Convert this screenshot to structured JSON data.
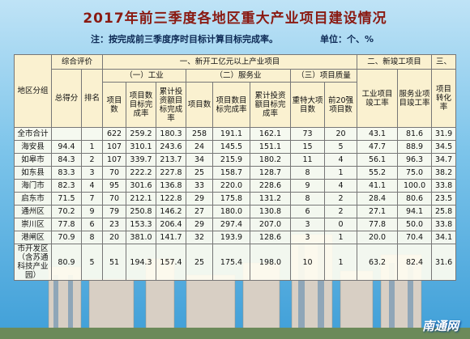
{
  "title": "2017年前三季度各地区重大产业项目建设情况",
  "note": "注：按完成前三季度序时目标计算目标完成率。",
  "unit": "单位：个、%",
  "table": {
    "header": {
      "region": "地区分组",
      "evaluation": "综合评价",
      "group1": "一、新开工亿元以上产业项目",
      "group2": "二、新竣工项目",
      "group3": "三、",
      "industry": "（一）工业",
      "service": "（二）服务业",
      "quality": "（三）项目质量",
      "columns": [
        "总得分",
        "排名",
        "项目数",
        "项目数目标完成率",
        "累计投资额目标完成率",
        "项目数",
        "项目数目标完成率",
        "累计投资额目标完成率",
        "重特大项目数",
        "前20强项目数",
        "工业项目竣工率",
        "服务业项目竣工率",
        "项目转化率"
      ]
    },
    "rows": [
      {
        "region": "全市合计",
        "values": [
          "622",
          "259.2",
          "180.3",
          "258",
          "191.1",
          "162.1",
          "73",
          "20",
          "43.1",
          "81.6",
          "31.9"
        ]
      },
      {
        "region": "海安县",
        "score": "94.4",
        "rank": "1",
        "values": [
          "107",
          "310.1",
          "243.6",
          "24",
          "145.5",
          "151.1",
          "15",
          "5",
          "47.7",
          "88.9",
          "34.5"
        ]
      },
      {
        "region": "如皋市",
        "score": "84.3",
        "rank": "2",
        "values": [
          "107",
          "339.7",
          "213.7",
          "34",
          "215.9",
          "180.2",
          "11",
          "4",
          "56.1",
          "96.3",
          "34.7"
        ]
      },
      {
        "region": "如东县",
        "score": "83.3",
        "rank": "3",
        "values": [
          "70",
          "222.2",
          "227.8",
          "25",
          "158.7",
          "128.7",
          "8",
          "1",
          "55.2",
          "75.0",
          "38.2"
        ]
      },
      {
        "region": "海门市",
        "score": "82.3",
        "rank": "4",
        "values": [
          "95",
          "301.6",
          "136.8",
          "33",
          "220.0",
          "228.6",
          "9",
          "4",
          "41.1",
          "100.0",
          "33.8"
        ]
      },
      {
        "region": "启东市",
        "score": "71.5",
        "rank": "7",
        "values": [
          "70",
          "212.1",
          "122.8",
          "29",
          "175.8",
          "131.2",
          "8",
          "2",
          "28.4",
          "80.6",
          "23.5"
        ]
      },
      {
        "region": "通州区",
        "score": "70.2",
        "rank": "9",
        "values": [
          "79",
          "250.8",
          "146.2",
          "27",
          "180.0",
          "130.8",
          "6",
          "2",
          "27.1",
          "94.1",
          "25.8"
        ]
      },
      {
        "region": "崇川区",
        "score": "77.8",
        "rank": "6",
        "values": [
          "23",
          "153.3",
          "206.4",
          "29",
          "297.4",
          "207.0",
          "3",
          "0",
          "77.8",
          "50.0",
          "33.8"
        ]
      },
      {
        "region": "港闸区",
        "score": "70.9",
        "rank": "8",
        "values": [
          "20",
          "381.0",
          "141.7",
          "32",
          "193.9",
          "128.6",
          "3",
          "1",
          "20.0",
          "70.4",
          "34.1"
        ]
      },
      {
        "region": "市开发区（含苏通科技产业园）",
        "score": "80.9",
        "rank": "5",
        "values": [
          "51",
          "194.3",
          "157.4",
          "25",
          "175.4",
          "198.0",
          "10",
          "1",
          "63.2",
          "82.4",
          "31.6"
        ]
      }
    ]
  },
  "watermark": "南通网"
}
